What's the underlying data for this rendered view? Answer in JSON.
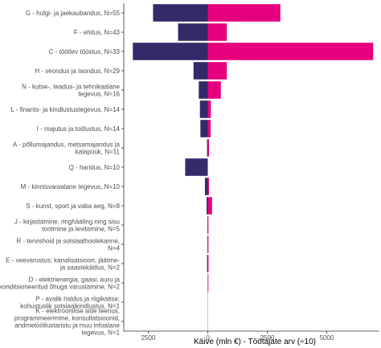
{
  "chart_data": {
    "type": "bar",
    "orientation": "horizontal-diverging",
    "xlabel": "Käive (mln €) - Töötajate arv (÷10)",
    "xlim": [
      -3200,
      7000
    ],
    "xticks": [
      -2500,
      0,
      2500,
      5000
    ],
    "xtick_labels": [
      "2500",
      "0",
      "2500",
      "5000"
    ],
    "grid": false,
    "legend": "none",
    "colors": {
      "left": "#35296a",
      "right": "#e6007e"
    },
    "categories": [
      [
        "G - hulgi- ja jaekaubandus, N=55"
      ],
      [
        "F - ehitus, N=43"
      ],
      [
        "C - töötlev tööstus, N=33"
      ],
      [
        "H - veondus ja laondus, N=29"
      ],
      [
        "N - kutse-, teadus- ja tehnikaalane",
        "tegevus, N=16"
      ],
      [
        "L - finants- ja kindlustustegevus, N=14"
      ],
      [
        "I - majutus ja toitlustus, N=14"
      ],
      [
        "A - põllumajandus, metsamajandus ja",
        "kalapüük, N=11"
      ],
      [
        "Q - haridus, N=10"
      ],
      [
        "M - kinnisvaraalane tegevus, N=10"
      ],
      [
        "S - kunst, sport ja vaba aeg, N=8"
      ],
      [
        "J - kirjastamine, ringhääling ning sisu",
        "tootmine ja levitamine, N=5"
      ],
      [
        "R - tervishoid ja sotsiaalhoolekanne,",
        "N=4"
      ],
      [
        "E - veevarustus; kanalisatsioon, jäätme-",
        "ja saastekäitlus, N=2"
      ],
      [
        "D - elektrienergia, gaasi, auru ja",
        "konditsioneeritud õhuga varustamine, N=2"
      ],
      [
        "P - avalik haldus ja riigikaitse;",
        "kohustuslik sotsiaalkindlustus, N=1"
      ],
      [
        "K - elektroonilise side teenus,",
        "programmeerimine, konsultatsioonid,",
        "andmetöötlustaristu ja muu infoalane",
        "tegevus, N=1"
      ]
    ],
    "series": [
      {
        "values": [
          -2300,
          -1250,
          -3150,
          -600,
          -380,
          -330,
          -310,
          -30,
          -950,
          -120,
          -50,
          -15,
          -15,
          -30,
          -10,
          0,
          0
        ]
      },
      {
        "values": [
          3050,
          800,
          6950,
          800,
          550,
          130,
          120,
          50,
          0,
          50,
          180,
          15,
          20,
          30,
          10,
          0,
          0
        ]
      }
    ]
  }
}
